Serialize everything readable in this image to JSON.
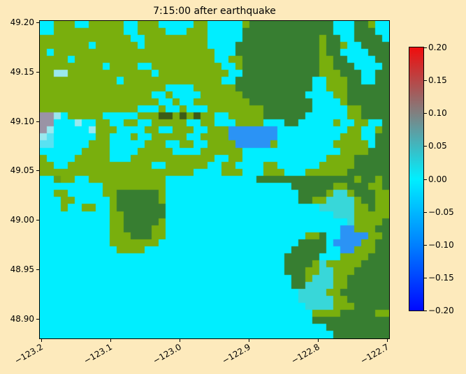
{
  "figure": {
    "background_color": "#FDEABC",
    "title": "7:15:00 after earthquake"
  },
  "chart_data": {
    "type": "heatmap",
    "title": "7:15:00 after earthquake",
    "xlabel": "",
    "ylabel": "",
    "x_tick_labels": [
      "−123.2",
      "−123.1",
      "−123.0",
      "−122.9",
      "−122.8",
      "−122.7"
    ],
    "y_tick_labels": [
      "49.20",
      "49.15",
      "49.10",
      "49.05",
      "49.00",
      "48.95",
      "48.90"
    ],
    "x_range": [
      -123.2,
      -122.7
    ],
    "y_range": [
      48.88,
      49.2
    ],
    "grid_lines": false,
    "colorbar": {
      "tick_labels": [
        "0.20",
        "0.15",
        "0.10",
        "0.05",
        "0.00",
        "−0.05",
        "−0.10",
        "−0.15",
        "−0.20"
      ],
      "vmin": -0.2,
      "vmax": 0.2,
      "stops": [
        {
          "value": 0.2,
          "color": "#f00d0d"
        },
        {
          "value": 0.1,
          "color": "#808080"
        },
        {
          "value": 0.0,
          "color": "#00efff"
        },
        {
          "value": -0.1,
          "color": "#0080ff"
        },
        {
          "value": -0.2,
          "color": "#0008ff"
        }
      ]
    },
    "raster": {
      "rows": 45,
      "cols": 50,
      "palette": {
        "g": "#79af0d",
        "h": "#639f17",
        "G": "#377e31",
        "c": "#00eeff",
        "C": "#9ae8ee",
        "d": "#38d7d9",
        "b": "#2b93f5",
        "p": "#9a93a5",
        "e": "#59e2f2",
        "k": "#3c5b16"
      },
      "cells": [
        "ccgggccgggggccgggcccccggcccccgGGGGGGGGGGGGcccGGgcc",
        "ccggggggggggccggggcccgggcccccGGGGGGGGGGGGGcccGGGcc",
        "gggggggggggggccgggggggggcccccGGGGGGGGGGGgGGccGGGGc",
        "gggggggcggggggcgggggggggccccGGGGGGGGGGGGgGGgccGGGG",
        "gcgggggggggggggggggggggggcccGGGGGGGGGGGGgGGccccGGG",
        "ggggcggggggggggggggggggggccggGGGGGGGGGGGggGGccccGG",
        "gggggggggcggggccggggggggggccgGGGGGGGGGGGggGGGccccG",
        "ggCCggggggggggggcggggggggggccGGGGGGGGGGGgggGGGccGG",
        "gggggggggggcggggggggggggggccGGGGGGGGGGGccgggGGccGG",
        "ggggggggggggggggggccccggggggGGGGGGGGGGGccgggGGGGGG",
        "ggggggggggggggggccgccccggggggGGGGGGGGGccccggGGGGGG",
        "gggggggggggggggggccgccggggggggGGGGGGGGGccccgGGGGGG",
        "ggggggggggggggcccgccgcccggggggggGGGGGGGcccccggGGGG",
        "ppCcgggggcccccgggkkgkgkggccgggggGGGGGGccccccggGGGG",
        "ppcccCccggccggccgggggccggcccggggcccGGcccccgccggccG",
        "pCcccccCgggccccggccgggccgggbbbbbbbccccccccccggccgG",
        "CeccccccggcccgccgggggccggggbbbbbbbcccccccccgggccGG",
        "eecccccgggcccccgggccggccggggbbbbbgccccccccgggggcGG",
        "ccccccggggccccgggggccccggggggccccccccccccccggggGGGG",
        "gccccgggggcccggggggggggggccggccccccccccccggggGGGGG",
        "ggccggggggggggggccggggggccggccccggccccccgggggGGGGG",
        "ggggggggggggggggggggggccccgggcccgggcccggggggGGGGGG",
        "cchggccgggggggggggcccccccccccccGGGGGGGGGGGGGGgGGgG",
        "cccccccccgggggggggccccccccccccccccccGGGGGGggGGGggG",
        "ccggcccccggGGGGGGgcccccccccccccccccccGGGGgddgGGGgg",
        "cccggcccccgGGGGGGgcccccccccccccccccccGGggddddgGGgg",
        "cccgccggccgGGGGGGGccccccccccccccccccccccdddddggGgg",
        "ccccccccccggGGGGGGccccccccccccccccccccccccdddggggg",
        "ccccccccccggGGGGGgccccccccccccccccccccccccccdggggG",
        "ccccccccccggGGGGggcccccccccccccccccccccccccbbgggGG",
        "ccccccccccgggGGGggccccccccccccccccccccggGccbbbbggGG",
        "ccccccccccgggggggccccccccccccccccccccGGGGcbbbbggGGG",
        "cccccccccccggggcccccccccccccccccccccGGGGGccbbgggGGG",
        "cccccccccccccccccccccccccccccccccccGGGGGcccggggGGG",
        "cccccccccccccccccccccccccccccccccccGGGGgdgggggGGGG",
        "cccccccccccccccccccccccccccccccccccGGGggddgggGGGGG",
        "ccccccccccccccccccccccccccccccccccccGGgdddggGGGGGG",
        "ccccccccccccccccccccccccccccccccccccGGddddggGGGGGG",
        "cccccccccccccccccccccccccccccccccccccddddggGGGGGGG",
        "cccccccccccccccccccccccccccccccccccccdddddggGGGGGG",
        "ccccccccccccccccccccccccccccccccccccccddddgggGGGGG",
        "cccccccccccccccccccccccccccccccccccccccggggGGGGGgg",
        "cccccccccccccccccccccccccccccccccccccccGGGGGGGGGGG",
        "cccccccccccccccccccccccccccccccccccccccccGGGGGGGGG",
        "ccccccccccccccccccccccccccccccccccccccccccGGGGGGGG"
      ]
    }
  }
}
